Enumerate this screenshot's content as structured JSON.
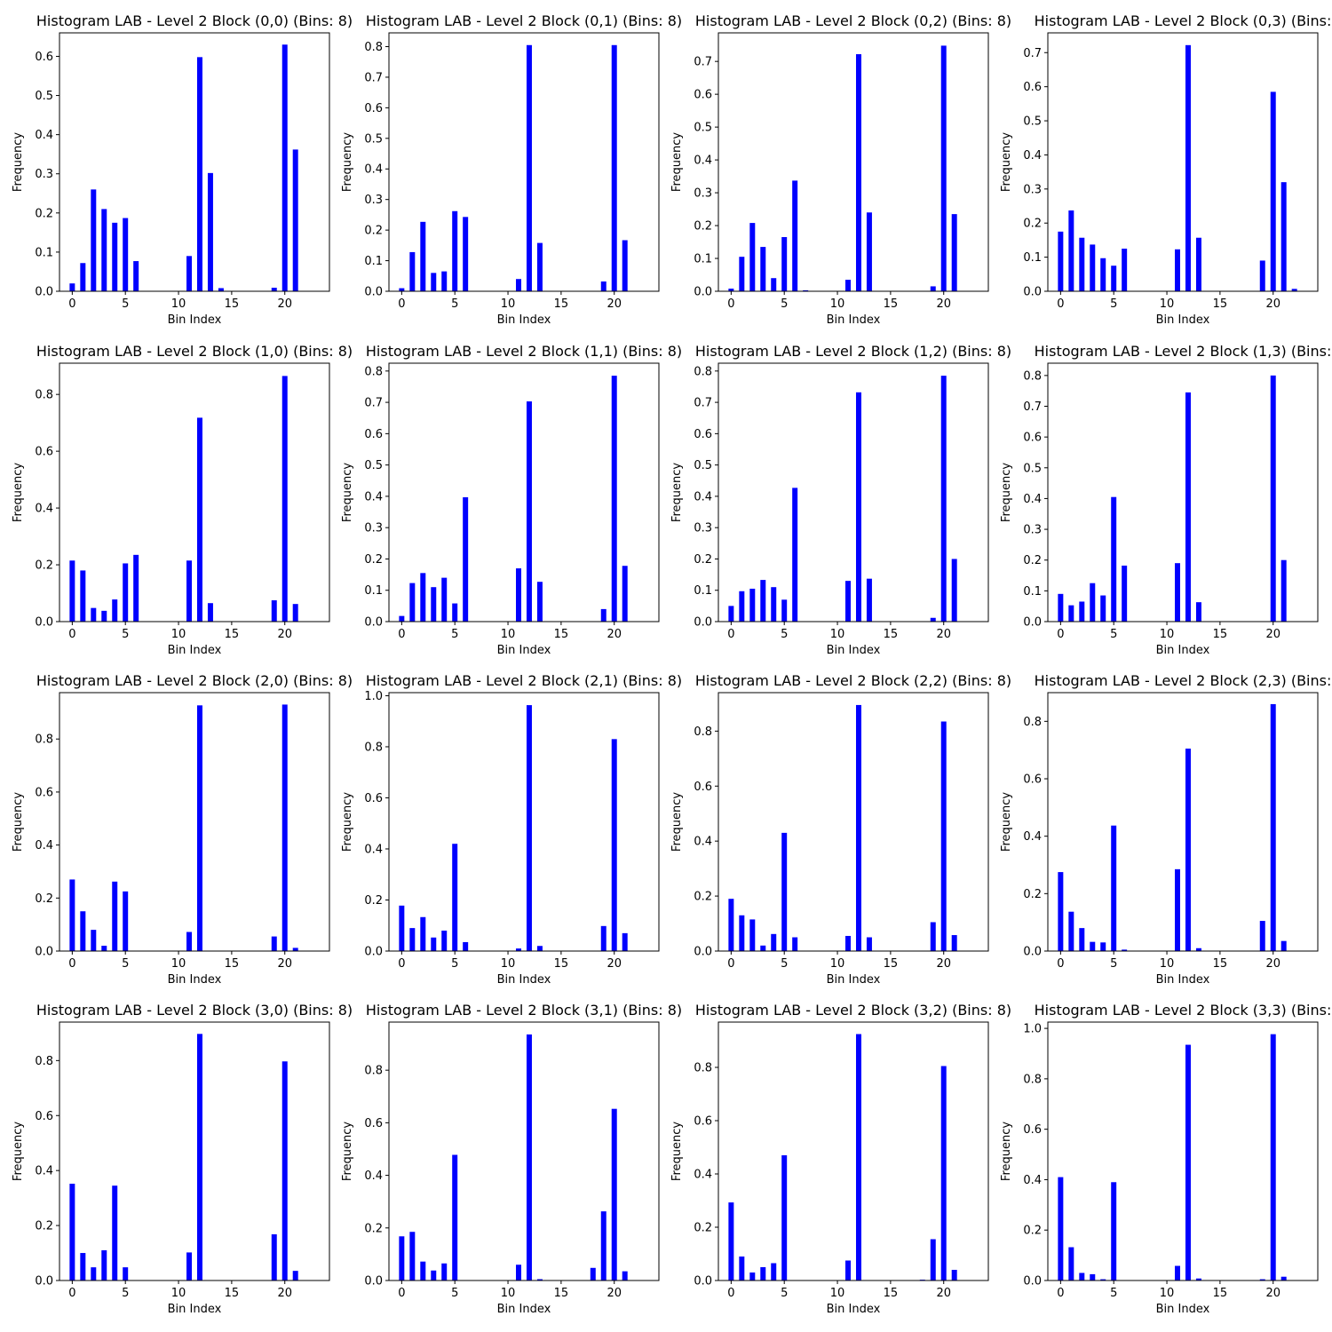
{
  "chart_data": [
    {
      "type": "bar",
      "title": "Histogram LAB - Level 2 Block (0,0) (Bins: 8)",
      "xlabel": "Bin Index",
      "ylabel": "Frequency",
      "xlim": [
        -1.2,
        24.2
      ],
      "ylim": [
        0,
        0.66
      ],
      "xticks": [
        0,
        5,
        10,
        15,
        20
      ],
      "yticks": [
        0,
        0.1,
        0.2,
        0.3,
        0.4,
        0.5,
        0.6
      ],
      "ytick_labels": [
        "0.0",
        "0.1",
        "0.2",
        "0.3",
        "0.4",
        "0.5",
        "0.6"
      ],
      "x": [
        0,
        1,
        2,
        3,
        4,
        5,
        6,
        11,
        12,
        13,
        14,
        19,
        20,
        21
      ],
      "values": [
        0.02,
        0.072,
        0.26,
        0.21,
        0.175,
        0.187,
        0.077,
        0.09,
        0.598,
        0.302,
        0.008,
        0.009,
        0.63,
        0.362
      ],
      "color": "#0000ff"
    },
    {
      "type": "bar",
      "title": "Histogram LAB - Level 2 Block (0,1) (Bins: 8)",
      "xlabel": "Bin Index",
      "ylabel": "Frequency",
      "xlim": [
        -1.2,
        24.2
      ],
      "ylim": [
        0,
        0.845
      ],
      "xticks": [
        0,
        5,
        10,
        15,
        20
      ],
      "yticks": [
        0,
        0.1,
        0.2,
        0.3,
        0.4,
        0.5,
        0.6,
        0.7,
        0.8
      ],
      "ytick_labels": [
        "0.0",
        "0.1",
        "0.2",
        "0.3",
        "0.4",
        "0.5",
        "0.6",
        "0.7",
        "0.8"
      ],
      "x": [
        0,
        1,
        2,
        3,
        4,
        5,
        6,
        11,
        12,
        13,
        19,
        20,
        21
      ],
      "values": [
        0.01,
        0.128,
        0.227,
        0.06,
        0.065,
        0.262,
        0.243,
        0.04,
        0.805,
        0.158,
        0.032,
        0.805,
        0.167
      ],
      "color": "#0000ff"
    },
    {
      "type": "bar",
      "title": "Histogram LAB - Level 2 Block (0,2) (Bins: 8)",
      "xlabel": "Bin Index",
      "ylabel": "Frequency",
      "xlim": [
        -1.2,
        24.2
      ],
      "ylim": [
        0,
        0.787
      ],
      "xticks": [
        0,
        5,
        10,
        15,
        20
      ],
      "yticks": [
        0,
        0.1,
        0.2,
        0.3,
        0.4,
        0.5,
        0.6,
        0.7
      ],
      "ytick_labels": [
        "0.0",
        "0.1",
        "0.2",
        "0.3",
        "0.4",
        "0.5",
        "0.6",
        "0.7"
      ],
      "x": [
        0,
        1,
        2,
        3,
        4,
        5,
        6,
        7,
        11,
        12,
        13,
        19,
        20,
        21
      ],
      "values": [
        0.008,
        0.105,
        0.208,
        0.135,
        0.04,
        0.165,
        0.337,
        0.003,
        0.035,
        0.722,
        0.24,
        0.015,
        0.748,
        0.235
      ],
      "color": "#0000ff"
    },
    {
      "type": "bar",
      "title": "Histogram LAB - Level 2 Block (0,3) (Bins:",
      "xlabel": "Bin Index",
      "ylabel": "Frequency",
      "xlim": [
        -1.2,
        24.2
      ],
      "ylim": [
        0,
        0.758
      ],
      "xticks": [
        0,
        5,
        10,
        15,
        20
      ],
      "yticks": [
        0,
        0.1,
        0.2,
        0.3,
        0.4,
        0.5,
        0.6,
        0.7
      ],
      "ytick_labels": [
        "0.0",
        "0.1",
        "0.2",
        "0.3",
        "0.4",
        "0.5",
        "0.6",
        "0.7"
      ],
      "x": [
        0,
        1,
        2,
        3,
        4,
        5,
        6,
        11,
        12,
        13,
        19,
        20,
        21,
        22
      ],
      "values": [
        0.175,
        0.237,
        0.157,
        0.137,
        0.097,
        0.075,
        0.125,
        0.123,
        0.722,
        0.157,
        0.09,
        0.585,
        0.32,
        0.007
      ],
      "color": "#0000ff"
    },
    {
      "type": "bar",
      "title": "Histogram LAB - Level 2 Block (1,0) (Bins: 8)",
      "xlabel": "Bin Index",
      "ylabel": "Frequency",
      "xlim": [
        -1.2,
        24.2
      ],
      "ylim": [
        0,
        0.91
      ],
      "xticks": [
        0,
        5,
        10,
        15,
        20
      ],
      "yticks": [
        0,
        0.2,
        0.4,
        0.6,
        0.8
      ],
      "ytick_labels": [
        "0.0",
        "0.2",
        "0.4",
        "0.6",
        "0.8"
      ],
      "x": [
        0,
        1,
        2,
        3,
        4,
        5,
        6,
        11,
        12,
        13,
        19,
        20,
        21
      ],
      "values": [
        0.215,
        0.18,
        0.048,
        0.038,
        0.078,
        0.205,
        0.235,
        0.215,
        0.718,
        0.065,
        0.075,
        0.865,
        0.062
      ],
      "color": "#0000ff"
    },
    {
      "type": "bar",
      "title": "Histogram LAB - Level 2 Block (1,1) (Bins: 8)",
      "xlabel": "Bin Index",
      "ylabel": "Frequency",
      "xlim": [
        -1.2,
        24.2
      ],
      "ylim": [
        0,
        0.825
      ],
      "xticks": [
        0,
        5,
        10,
        15,
        20
      ],
      "yticks": [
        0,
        0.1,
        0.2,
        0.3,
        0.4,
        0.5,
        0.6,
        0.7,
        0.8
      ],
      "ytick_labels": [
        "0.0",
        "0.1",
        "0.2",
        "0.3",
        "0.4",
        "0.5",
        "0.6",
        "0.7",
        "0.8"
      ],
      "x": [
        0,
        1,
        2,
        3,
        4,
        5,
        6,
        11,
        12,
        13,
        19,
        20,
        21
      ],
      "values": [
        0.018,
        0.123,
        0.155,
        0.11,
        0.14,
        0.058,
        0.397,
        0.17,
        0.703,
        0.127,
        0.04,
        0.785,
        0.178
      ],
      "color": "#0000ff"
    },
    {
      "type": "bar",
      "title": "Histogram LAB - Level 2 Block (1,2) (Bins: 8)",
      "xlabel": "Bin Index",
      "ylabel": "Frequency",
      "xlim": [
        -1.2,
        24.2
      ],
      "ylim": [
        0,
        0.825
      ],
      "xticks": [
        0,
        5,
        10,
        15,
        20
      ],
      "yticks": [
        0,
        0.1,
        0.2,
        0.3,
        0.4,
        0.5,
        0.6,
        0.7,
        0.8
      ],
      "ytick_labels": [
        "0.0",
        "0.1",
        "0.2",
        "0.3",
        "0.4",
        "0.5",
        "0.6",
        "0.7",
        "0.8"
      ],
      "x": [
        0,
        1,
        2,
        3,
        4,
        5,
        6,
        11,
        12,
        13,
        19,
        20,
        21
      ],
      "values": [
        0.05,
        0.097,
        0.105,
        0.133,
        0.11,
        0.07,
        0.427,
        0.13,
        0.732,
        0.137,
        0.012,
        0.785,
        0.2
      ],
      "color": "#0000ff"
    },
    {
      "type": "bar",
      "title": "Histogram LAB - Level 2 Block (1,3) (Bins:",
      "xlabel": "Bin Index",
      "ylabel": "Frequency",
      "xlim": [
        -1.2,
        24.2
      ],
      "ylim": [
        0,
        0.84
      ],
      "xticks": [
        0,
        5,
        10,
        15,
        20
      ],
      "yticks": [
        0,
        0.1,
        0.2,
        0.3,
        0.4,
        0.5,
        0.6,
        0.7,
        0.8
      ],
      "ytick_labels": [
        "0.0",
        "0.1",
        "0.2",
        "0.3",
        "0.4",
        "0.5",
        "0.6",
        "0.7",
        "0.8"
      ],
      "x": [
        0,
        1,
        2,
        3,
        4,
        5,
        6,
        11,
        12,
        13,
        20,
        21
      ],
      "values": [
        0.09,
        0.053,
        0.065,
        0.125,
        0.085,
        0.405,
        0.182,
        0.19,
        0.745,
        0.063,
        0.8,
        0.2
      ],
      "color": "#0000ff"
    },
    {
      "type": "bar",
      "title": "Histogram LAB - Level 2 Block (2,0) (Bins: 8)",
      "xlabel": "Bin Index",
      "ylabel": "Frequency",
      "xlim": [
        -1.2,
        24.2
      ],
      "ylim": [
        0,
        0.975
      ],
      "xticks": [
        0,
        5,
        10,
        15,
        20
      ],
      "yticks": [
        0,
        0.2,
        0.4,
        0.6,
        0.8
      ],
      "ytick_labels": [
        "0.0",
        "0.2",
        "0.4",
        "0.6",
        "0.8"
      ],
      "x": [
        0,
        1,
        2,
        3,
        4,
        5,
        11,
        12,
        19,
        20,
        21
      ],
      "values": [
        0.27,
        0.15,
        0.08,
        0.02,
        0.262,
        0.225,
        0.072,
        0.927,
        0.055,
        0.93,
        0.012
      ],
      "color": "#0000ff"
    },
    {
      "type": "bar",
      "title": "Histogram LAB - Level 2 Block (2,1) (Bins: 8)",
      "xlabel": "Bin Index",
      "ylabel": "Frequency",
      "xlim": [
        -1.2,
        24.2
      ],
      "ylim": [
        0,
        1.012
      ],
      "xticks": [
        0,
        5,
        10,
        15,
        20
      ],
      "yticks": [
        0,
        0.2,
        0.4,
        0.6,
        0.8,
        1.0
      ],
      "ytick_labels": [
        "0.0",
        "0.2",
        "0.4",
        "0.6",
        "0.8",
        "1.0"
      ],
      "x": [
        0,
        1,
        2,
        3,
        4,
        5,
        6,
        11,
        12,
        13,
        19,
        20,
        21
      ],
      "values": [
        0.178,
        0.09,
        0.133,
        0.053,
        0.08,
        0.42,
        0.035,
        0.01,
        0.963,
        0.02,
        0.098,
        0.83,
        0.07
      ],
      "color": "#0000ff"
    },
    {
      "type": "bar",
      "title": "Histogram LAB - Level 2 Block (2,2) (Bins: 8)",
      "xlabel": "Bin Index",
      "ylabel": "Frequency",
      "xlim": [
        -1.2,
        24.2
      ],
      "ylim": [
        0,
        0.94
      ],
      "xticks": [
        0,
        5,
        10,
        15,
        20
      ],
      "yticks": [
        0,
        0.2,
        0.4,
        0.6,
        0.8
      ],
      "ytick_labels": [
        "0.0",
        "0.2",
        "0.4",
        "0.6",
        "0.8"
      ],
      "x": [
        0,
        1,
        2,
        3,
        4,
        5,
        6,
        11,
        12,
        13,
        19,
        20,
        21
      ],
      "values": [
        0.19,
        0.13,
        0.115,
        0.02,
        0.062,
        0.43,
        0.05,
        0.055,
        0.895,
        0.05,
        0.105,
        0.835,
        0.058
      ],
      "color": "#0000ff"
    },
    {
      "type": "bar",
      "title": "Histogram LAB - Level 2 Block (2,3) (Bins:",
      "xlabel": "Bin Index",
      "ylabel": "Frequency",
      "xlim": [
        -1.2,
        24.2
      ],
      "ylim": [
        0,
        0.9
      ],
      "xticks": [
        0,
        5,
        10,
        15,
        20
      ],
      "yticks": [
        0,
        0.2,
        0.4,
        0.6,
        0.8
      ],
      "ytick_labels": [
        "0.0",
        "0.2",
        "0.4",
        "0.6",
        "0.8"
      ],
      "x": [
        0,
        1,
        2,
        3,
        4,
        5,
        6,
        11,
        12,
        13,
        19,
        20,
        21
      ],
      "values": [
        0.275,
        0.137,
        0.08,
        0.032,
        0.03,
        0.437,
        0.005,
        0.285,
        0.705,
        0.01,
        0.105,
        0.86,
        0.035
      ],
      "color": "#0000ff"
    },
    {
      "type": "bar",
      "title": "Histogram LAB - Level 2 Block (3,0) (Bins: 8)",
      "xlabel": "Bin Index",
      "ylabel": "Frequency",
      "xlim": [
        -1.2,
        24.2
      ],
      "ylim": [
        0,
        0.94
      ],
      "xticks": [
        0,
        5,
        10,
        15,
        20
      ],
      "yticks": [
        0,
        0.2,
        0.4,
        0.6,
        0.8
      ],
      "ytick_labels": [
        "0.0",
        "0.2",
        "0.4",
        "0.6",
        "0.8"
      ],
      "x": [
        0,
        1,
        2,
        3,
        4,
        5,
        11,
        12,
        19,
        20,
        21
      ],
      "values": [
        0.352,
        0.1,
        0.048,
        0.11,
        0.345,
        0.048,
        0.102,
        0.897,
        0.168,
        0.797,
        0.035
      ],
      "color": "#0000ff"
    },
    {
      "type": "bar",
      "title": "Histogram LAB - Level 2 Block (3,1) (Bins: 8)",
      "xlabel": "Bin Index",
      "ylabel": "Frequency",
      "xlim": [
        -1.2,
        24.2
      ],
      "ylim": [
        0,
        0.983
      ],
      "xticks": [
        0,
        5,
        10,
        15,
        20
      ],
      "yticks": [
        0,
        0.2,
        0.4,
        0.6,
        0.8
      ],
      "ytick_labels": [
        "0.0",
        "0.2",
        "0.4",
        "0.6",
        "0.8"
      ],
      "x": [
        0,
        1,
        2,
        3,
        4,
        5,
        11,
        12,
        13,
        18,
        19,
        20,
        21
      ],
      "values": [
        0.168,
        0.185,
        0.072,
        0.038,
        0.065,
        0.478,
        0.06,
        0.936,
        0.005,
        0.048,
        0.263,
        0.653,
        0.035
      ],
      "color": "#0000ff"
    },
    {
      "type": "bar",
      "title": "Histogram LAB - Level 2 Block (3,2) (Bins: 8)",
      "xlabel": "Bin Index",
      "ylabel": "Frequency",
      "xlim": [
        -1.2,
        24.2
      ],
      "ylim": [
        0,
        0.97
      ],
      "xticks": [
        0,
        5,
        10,
        15,
        20
      ],
      "yticks": [
        0,
        0.2,
        0.4,
        0.6,
        0.8
      ],
      "ytick_labels": [
        "0.0",
        "0.2",
        "0.4",
        "0.6",
        "0.8"
      ],
      "x": [
        0,
        1,
        2,
        3,
        4,
        5,
        11,
        12,
        18,
        19,
        20,
        21
      ],
      "values": [
        0.293,
        0.09,
        0.03,
        0.05,
        0.065,
        0.47,
        0.075,
        0.925,
        0.003,
        0.155,
        0.805,
        0.04
      ],
      "color": "#0000ff"
    },
    {
      "type": "bar",
      "title": "Histogram LAB - Level 2 Block (3,3) (Bins:",
      "xlabel": "Bin Index",
      "ylabel": "Frequency",
      "xlim": [
        -1.2,
        24.2
      ],
      "ylim": [
        0,
        1.025
      ],
      "xticks": [
        0,
        5,
        10,
        15,
        20
      ],
      "yticks": [
        0,
        0.2,
        0.4,
        0.6,
        0.8,
        1.0
      ],
      "ytick_labels": [
        "0.0",
        "0.2",
        "0.4",
        "0.6",
        "0.8",
        "1.0"
      ],
      "x": [
        0,
        1,
        2,
        3,
        4,
        5,
        11,
        12,
        13,
        19,
        20,
        21
      ],
      "values": [
        0.41,
        0.132,
        0.03,
        0.025,
        0.005,
        0.39,
        0.058,
        0.935,
        0.008,
        0.005,
        0.977,
        0.015
      ],
      "color": "#0000ff"
    }
  ]
}
